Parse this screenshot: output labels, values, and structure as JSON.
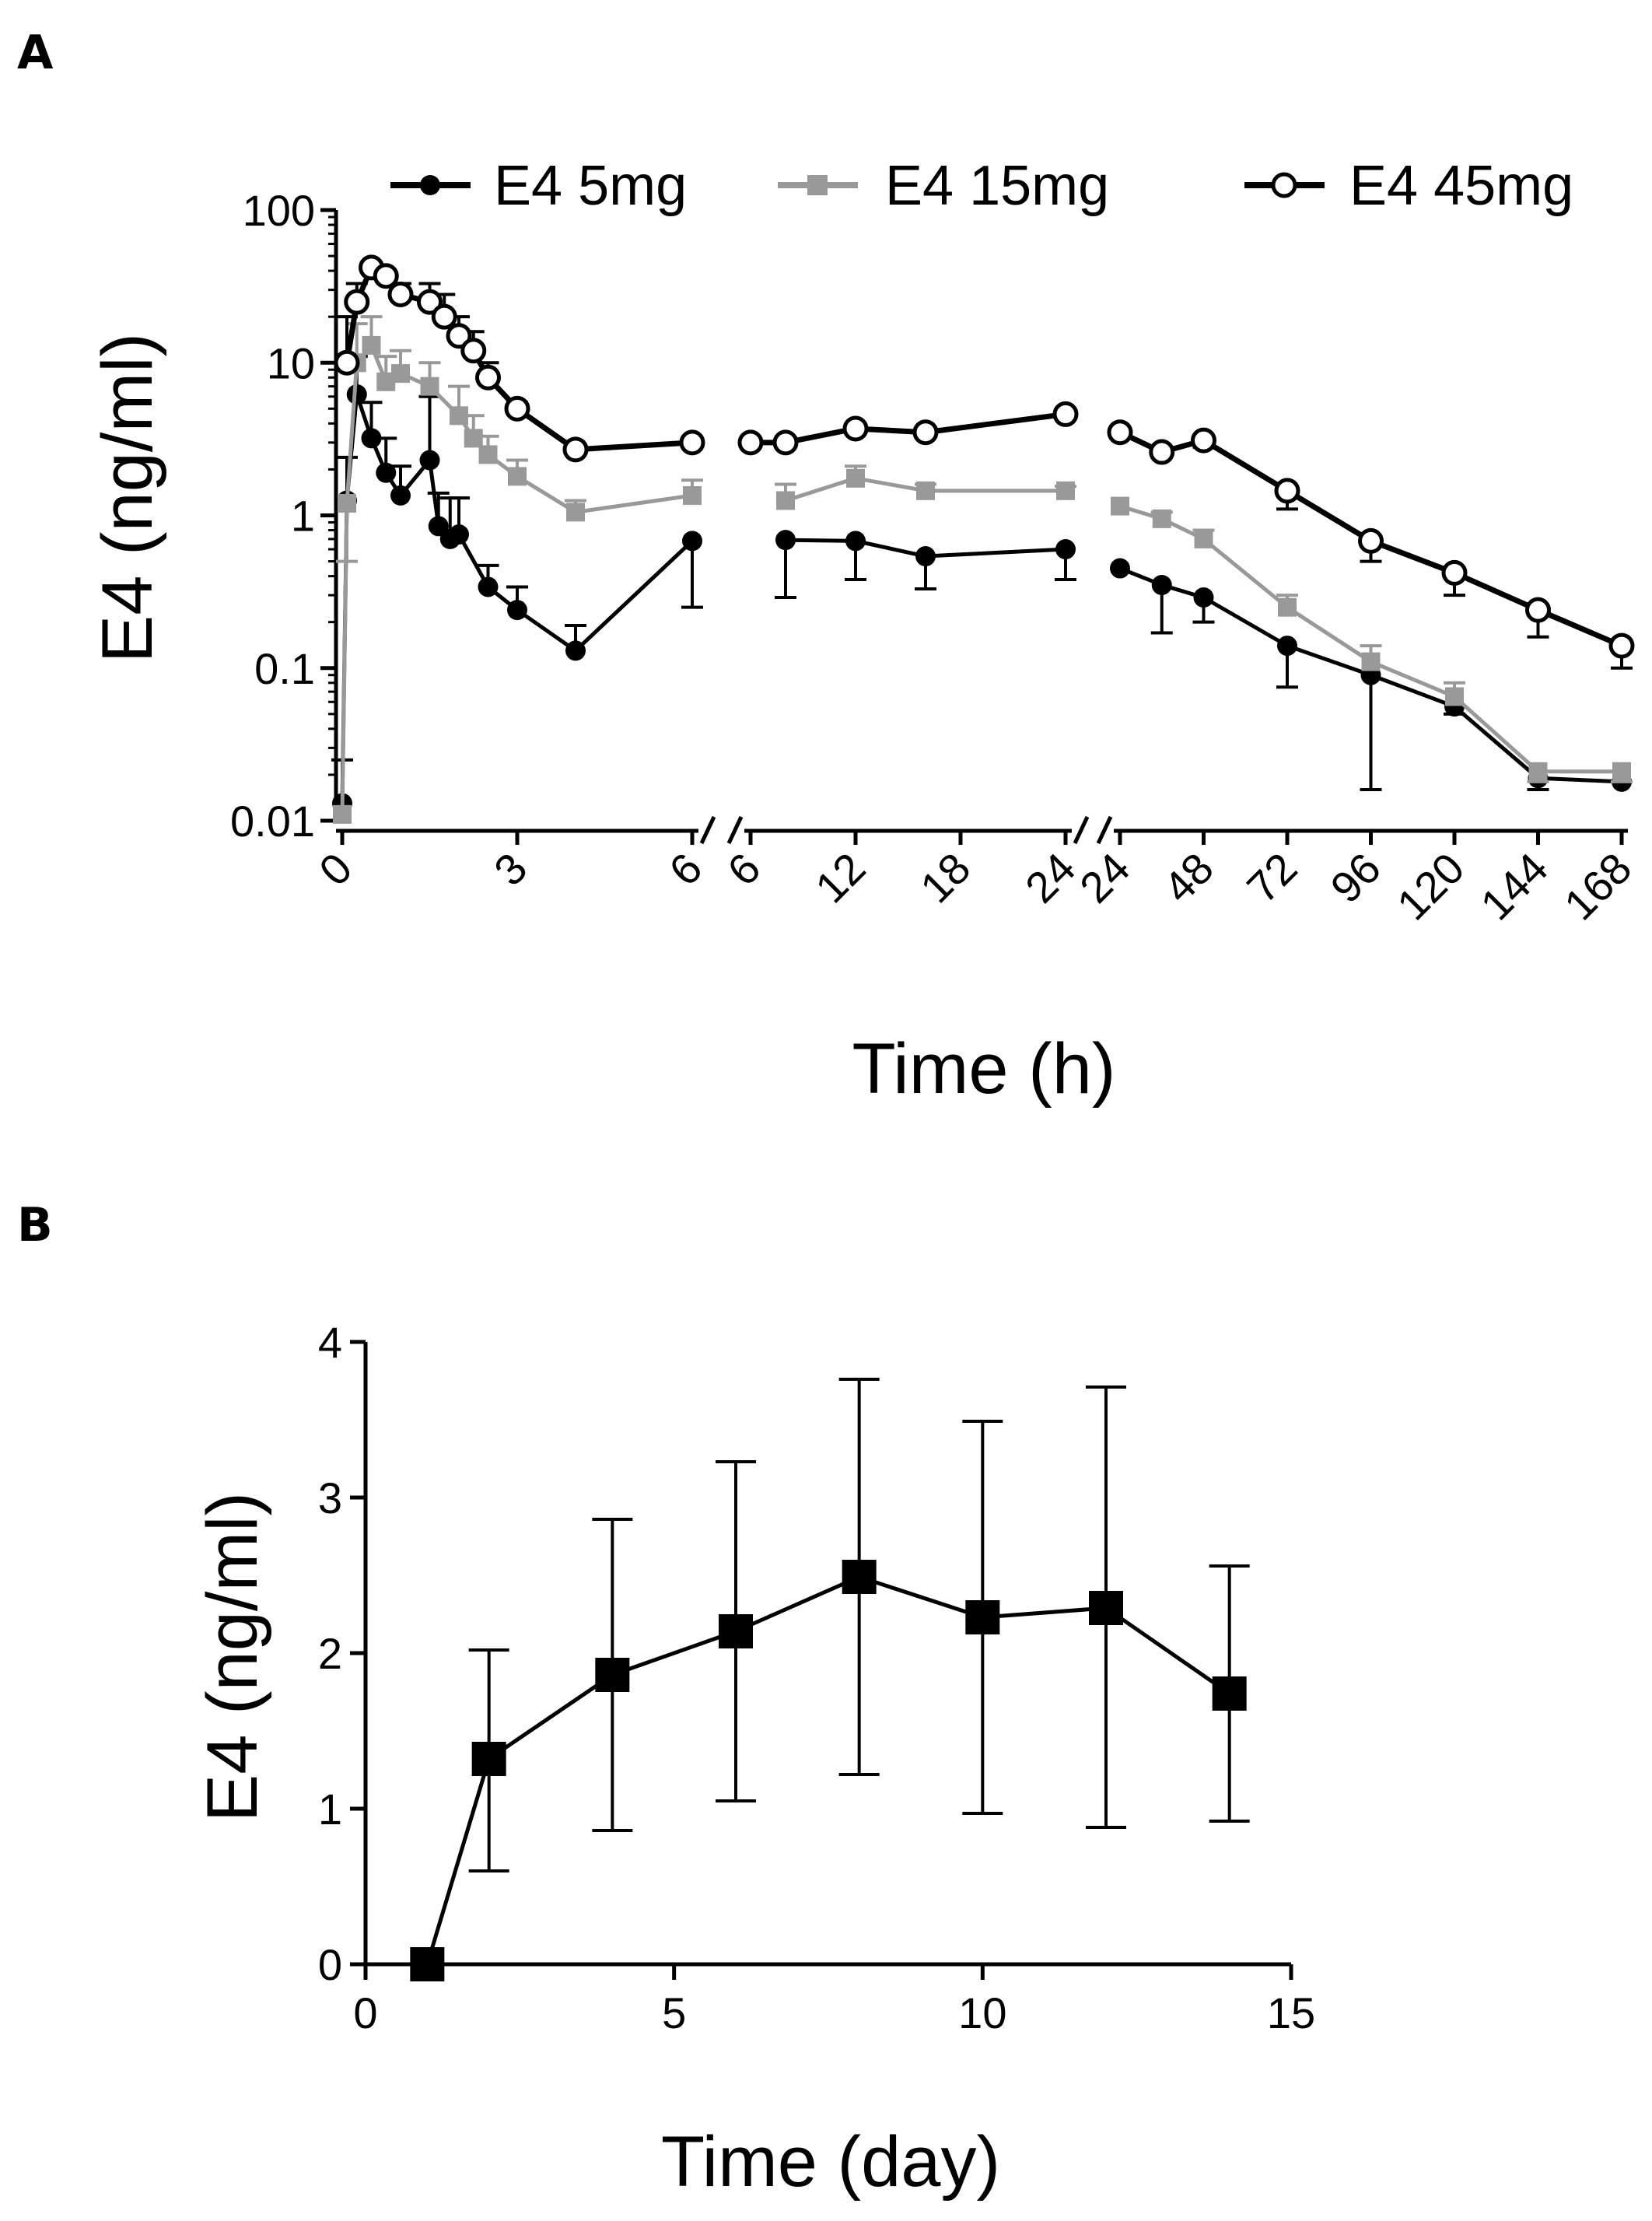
{
  "chart_data": [
    {
      "panel": "A",
      "type": "line",
      "title": "",
      "xlabel": "Time (h)",
      "ylabel": "E4 (ng/ml)",
      "yscale": "log",
      "ylim": [
        0.01,
        100
      ],
      "yticks": [
        "0.01",
        "0.1",
        "1",
        "10",
        "100"
      ],
      "x_segments": [
        {
          "range": [
            0,
            6
          ],
          "ticks": [
            "0",
            "3",
            "6"
          ]
        },
        {
          "range": [
            6,
            24
          ],
          "ticks": [
            "6",
            "12",
            "18",
            "24"
          ]
        },
        {
          "range": [
            24,
            168
          ],
          "ticks": [
            "24",
            "48",
            "72",
            "96",
            "120",
            "144",
            "168"
          ]
        }
      ],
      "legend": {
        "position": "top",
        "entries": [
          "E4 5mg",
          "E4 15mg",
          "E4 45mg"
        ]
      },
      "series": [
        {
          "name": "E4 5mg",
          "color": "#000000",
          "marker": "filled-circle",
          "segments": [
            [
              [
                0,
                0.013,
                0.025
              ],
              [
                0.08,
                1.25,
                2.4
              ],
              [
                0.25,
                6.2,
                11
              ],
              [
                0.5,
                3.2,
                5.5
              ],
              [
                0.75,
                1.9,
                3.2
              ],
              [
                1,
                1.35,
                2.1
              ],
              [
                1.5,
                2.3,
                6.0
              ],
              [
                1.65,
                0.85,
                1.4
              ],
              [
                1.85,
                0.7,
                1.3
              ],
              [
                2,
                0.75,
                1.3
              ],
              [
                2.5,
                0.34,
                0.47
              ],
              [
                3,
                0.24,
                0.34
              ],
              [
                4,
                0.13,
                0.19
              ],
              [
                6,
                0.68,
                0.25
              ]
            ],
            [
              [
                8,
                0.69,
                0.29
              ],
              [
                12,
                0.68,
                0.38
              ],
              [
                16,
                0.54,
                0.33
              ],
              [
                24,
                0.6,
                0.38
              ]
            ],
            [
              [
                24,
                0.45,
                0.45
              ],
              [
                36,
                0.35,
                0.17
              ],
              [
                48,
                0.29,
                0.2
              ],
              [
                72,
                0.14,
                0.075
              ],
              [
                96,
                0.09,
                0.016
              ],
              [
                120,
                0.056,
                0.05
              ],
              [
                144,
                0.019,
                0.016
              ],
              [
                168,
                0.018,
                0.018
              ]
            ]
          ]
        },
        {
          "name": "E4 15mg",
          "color": "#999999",
          "marker": "filled-square",
          "segments": [
            [
              [
                0,
                0.011,
                0.011
              ],
              [
                0.08,
                1.2,
                0.5
              ],
              [
                0.25,
                10,
                18
              ],
              [
                0.5,
                13,
                20
              ],
              [
                0.75,
                7.5,
                11
              ],
              [
                1,
                8.5,
                12
              ],
              [
                1.5,
                7,
                10
              ],
              [
                2,
                4.5,
                7
              ],
              [
                2.25,
                3.2,
                4.5
              ],
              [
                2.5,
                2.5,
                3.3
              ],
              [
                3,
                1.8,
                2.3
              ],
              [
                4,
                1.05,
                1.25
              ],
              [
                6,
                1.35,
                1.7
              ]
            ],
            [
              [
                8,
                1.25,
                1.6
              ],
              [
                12,
                1.75,
                2.1
              ],
              [
                16,
                1.45,
                1.6
              ],
              [
                24,
                1.45,
                1.55
              ]
            ],
            [
              [
                24,
                1.15,
                1.15
              ],
              [
                36,
                0.95,
                1.05
              ],
              [
                48,
                0.7,
                0.8
              ],
              [
                72,
                0.25,
                0.3
              ],
              [
                96,
                0.11,
                0.14
              ],
              [
                120,
                0.065,
                0.08
              ],
              [
                144,
                0.021,
                0.018
              ],
              [
                168,
                0.021,
                0.018
              ]
            ]
          ]
        },
        {
          "name": "E4 45mg",
          "color": "#000000",
          "marker": "open-circle",
          "segments": [
            [
              [
                0.08,
                10,
                20
              ],
              [
                0.25,
                25,
                33
              ],
              [
                0.5,
                42,
                45
              ],
              [
                0.75,
                37,
                40
              ],
              [
                1,
                28,
                33
              ],
              [
                1.5,
                25,
                33
              ],
              [
                1.75,
                20,
                28
              ],
              [
                2,
                15,
                20
              ],
              [
                2.25,
                12,
                16
              ],
              [
                2.5,
                8,
                10
              ],
              [
                3,
                5,
                5.5
              ],
              [
                4,
                2.7,
                2.5
              ],
              [
                6,
                3,
                2.8
              ]
            ],
            [
              [
                6,
                3,
                3
              ],
              [
                8,
                3,
                2.8
              ],
              [
                12,
                3.7,
                3.5
              ],
              [
                16,
                3.5,
                3.3
              ],
              [
                24,
                4.6,
                4.4
              ]
            ],
            [
              [
                24,
                3.5,
                3.5
              ],
              [
                36,
                2.6,
                2.6
              ],
              [
                48,
                3.1,
                2.8
              ],
              [
                72,
                1.45,
                1.1
              ],
              [
                96,
                0.68,
                0.5
              ],
              [
                120,
                0.42,
                0.3
              ],
              [
                144,
                0.24,
                0.16
              ],
              [
                168,
                0.14,
                0.1
              ]
            ]
          ]
        }
      ]
    },
    {
      "panel": "B",
      "type": "line",
      "title": "",
      "xlabel": "Time (day)",
      "ylabel": "E4 (ng/ml)",
      "xlim": [
        0,
        15
      ],
      "ylim": [
        0,
        4
      ],
      "xticks": [
        "0",
        "5",
        "10",
        "15"
      ],
      "yticks": [
        "0",
        "1",
        "2",
        "3",
        "4"
      ],
      "series": [
        {
          "name": "E4",
          "color": "#000000",
          "marker": "filled-square",
          "x": [
            1,
            2,
            4,
            6,
            8,
            10,
            12,
            14
          ],
          "y": [
            0,
            1.32,
            1.86,
            2.14,
            2.49,
            2.23,
            2.29,
            1.74
          ],
          "err_low": [
            0,
            0.6,
            0.86,
            1.05,
            1.22,
            0.97,
            0.88,
            0.92
          ],
          "err_high": [
            0,
            2.02,
            2.86,
            3.23,
            3.76,
            3.49,
            3.71,
            2.56
          ]
        }
      ]
    }
  ],
  "panel_labels": {
    "a": "A",
    "b": "B"
  }
}
